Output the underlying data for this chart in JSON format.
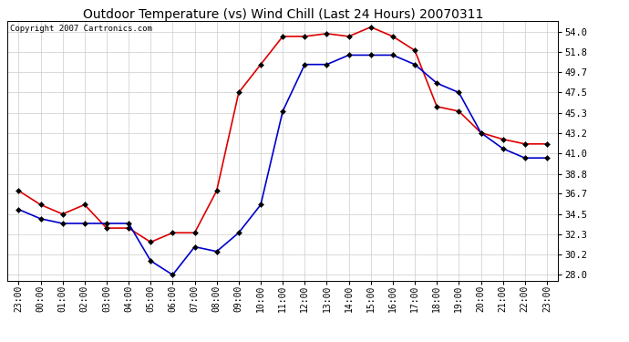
{
  "title": "Outdoor Temperature (vs) Wind Chill (Last 24 Hours) 20070311",
  "copyright": "Copyright 2007 Cartronics.com",
  "x_labels": [
    "23:00",
    "00:00",
    "01:00",
    "02:00",
    "03:00",
    "04:00",
    "05:00",
    "06:00",
    "07:00",
    "08:00",
    "09:00",
    "10:00",
    "11:00",
    "12:00",
    "13:00",
    "14:00",
    "15:00",
    "16:00",
    "17:00",
    "18:00",
    "19:00",
    "20:00",
    "21:00",
    "22:00",
    "23:00"
  ],
  "temp_red": [
    37.0,
    35.5,
    34.5,
    35.5,
    33.0,
    33.0,
    31.5,
    32.5,
    32.5,
    37.0,
    47.5,
    50.5,
    53.5,
    53.5,
    53.8,
    53.5,
    54.5,
    53.5,
    52.0,
    46.0,
    45.5,
    43.2,
    42.5,
    42.0,
    42.0
  ],
  "wind_chill_blue": [
    35.0,
    34.0,
    33.5,
    33.5,
    33.5,
    33.5,
    29.5,
    28.0,
    31.0,
    30.5,
    32.5,
    35.5,
    45.5,
    50.5,
    50.5,
    51.5,
    51.5,
    51.5,
    50.5,
    48.5,
    47.5,
    43.2,
    41.5,
    40.5,
    40.5
  ],
  "y_ticks": [
    28.0,
    30.2,
    32.3,
    34.5,
    36.7,
    38.8,
    41.0,
    43.2,
    45.3,
    47.5,
    49.7,
    51.8,
    54.0
  ],
  "ylim": [
    27.4,
    55.2
  ],
  "bg_color": "#ffffff",
  "grid_color": "#cccccc",
  "red_color": "#dd0000",
  "blue_color": "#0000cc",
  "title_fontsize": 10,
  "copyright_fontsize": 6.5,
  "tick_fontsize": 7,
  "ytick_fontsize": 7.5
}
